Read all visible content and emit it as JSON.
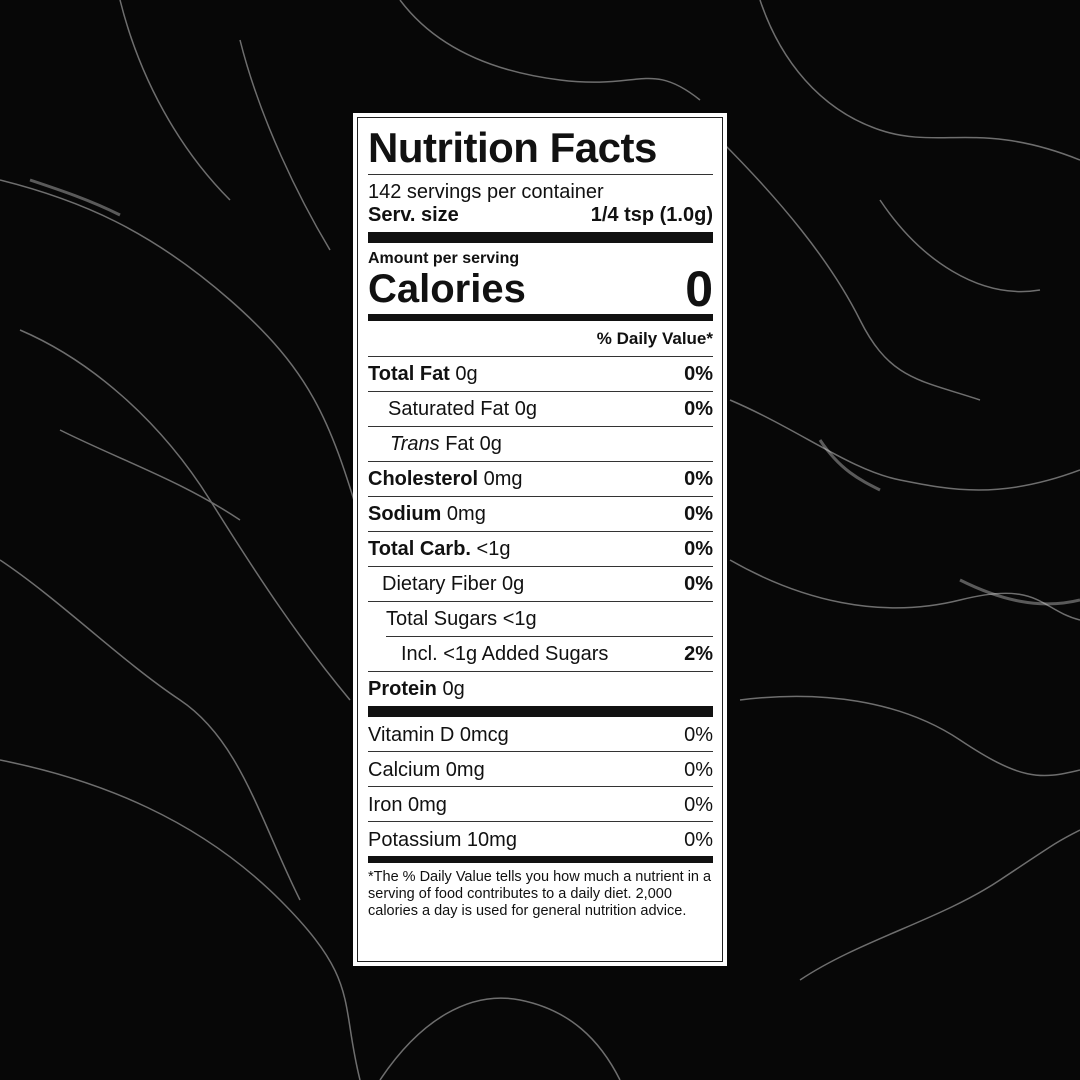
{
  "background": {
    "color": "#070707",
    "vein_color": "#bfbfbf"
  },
  "label": {
    "title": "Nutrition Facts",
    "servings": "142 servings per container",
    "serving_size_label": "Serv. size",
    "serving_size_value": "1/4 tsp (1.0g)",
    "amount_per_serving": "Amount per serving",
    "calories_label": "Calories",
    "calories_value": "0",
    "daily_value_header": "% Daily Value*",
    "nutrients": [
      {
        "name": "Total Fat",
        "amount": "0g",
        "dv": "0%"
      },
      {
        "name": "Saturated Fat",
        "amount": "0g",
        "dv": "0%"
      },
      {
        "name": "Trans",
        "suffix": "Fat",
        "amount": "0g",
        "dv": ""
      },
      {
        "name": "Cholesterol",
        "amount": "0mg",
        "dv": "0%"
      },
      {
        "name": "Sodium",
        "amount": "0mg",
        "dv": "0%"
      },
      {
        "name": "Total Carb.",
        "amount": "<1g",
        "dv": "0%"
      },
      {
        "name": "Dietary Fiber",
        "amount": "0g",
        "dv": "0%"
      },
      {
        "name": "Total Sugars",
        "amount": "<1g",
        "dv": ""
      },
      {
        "name": "Incl. <1g Added Sugars",
        "amount": "",
        "dv": "2%"
      },
      {
        "name": "Protein",
        "amount": "0g",
        "dv": ""
      }
    ],
    "vitamins": [
      {
        "text": "Vitamin D 0mcg",
        "dv": "0%"
      },
      {
        "text": "Calcium 0mg",
        "dv": "0%"
      },
      {
        "text": "Iron 0mg",
        "dv": "0%"
      },
      {
        "text": "Potassium 10mg",
        "dv": "0%"
      }
    ],
    "footnote": "*The % Daily Value tells you how much a nutrient in a serving of food contributes to a daily diet. 2,000 calories a day is used for general nutrition advice."
  }
}
